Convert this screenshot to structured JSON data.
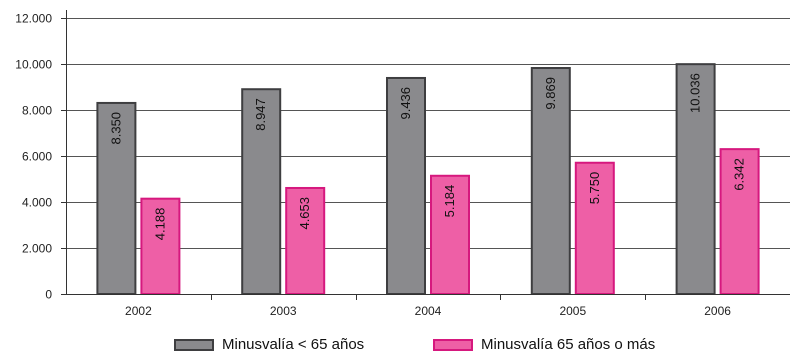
{
  "chart_data": {
    "type": "bar",
    "categories": [
      "2002",
      "2003",
      "2004",
      "2005",
      "2006"
    ],
    "series": [
      {
        "name": "Minusvalía < 65 años",
        "values": [
          8350,
          8947,
          9436,
          9869,
          10036
        ],
        "labels": [
          "8.350",
          "8.947",
          "9.436",
          "9.869",
          "10.036"
        ],
        "color": "#8a8a8d",
        "border": "#3e3e40"
      },
      {
        "name": "Minusvalía 65 años o más",
        "values": [
          4188,
          4653,
          5184,
          5750,
          6342
        ],
        "labels": [
          "4.188",
          "4.653",
          "5.184",
          "5.750",
          "6.342"
        ],
        "color": "#ee5fa6",
        "border": "#d6187e"
      }
    ],
    "y_ticks": [
      0,
      2000,
      4000,
      6000,
      8000,
      10000,
      12000
    ],
    "y_tick_labels": [
      "0",
      "2.000",
      "4.000",
      "6.000",
      "8.000",
      "10.000",
      "12.000"
    ],
    "ylim": [
      0,
      12000
    ],
    "grid": true,
    "legend_position": "bottom",
    "title": "",
    "xlabel": "",
    "ylabel": ""
  }
}
